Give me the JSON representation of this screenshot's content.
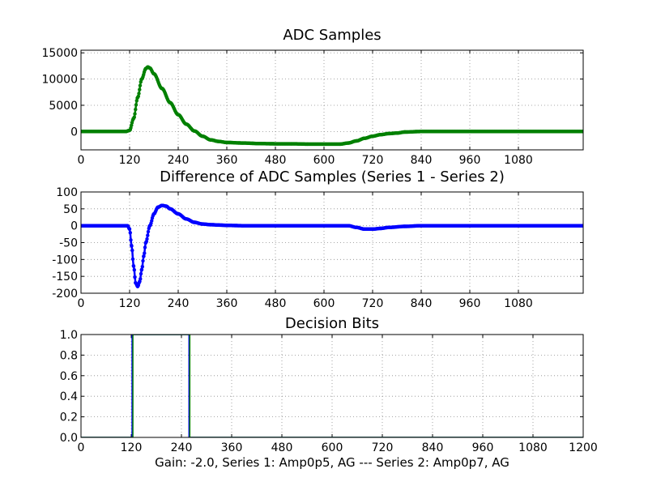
{
  "figure": {
    "caption": "Gain: -2.0, Series 1: Amp0p5, AG --- Series 2: Amp0p7, AG"
  },
  "chart_data": [
    {
      "type": "scatter",
      "title": "ADC Samples",
      "xlabel": "",
      "ylabel": "",
      "xlim": [
        0,
        1240
      ],
      "ylim": [
        -3500,
        15500
      ],
      "xticks": [
        0,
        120,
        240,
        360,
        480,
        600,
        720,
        840,
        960,
        1080
      ],
      "yticks": [
        0,
        5000,
        10000,
        15000
      ],
      "grid": true,
      "legend": "none",
      "series": [
        {
          "color": "#008000",
          "marker": "dot",
          "x": [
            0,
            110,
            120,
            130,
            140,
            150,
            160,
            165,
            170,
            180,
            200,
            220,
            240,
            260,
            280,
            300,
            320,
            340,
            360,
            400,
            440,
            480,
            520,
            560,
            600,
            640,
            660,
            680,
            700,
            720,
            740,
            760,
            780,
            800,
            840,
            880,
            960,
            1080,
            1240
          ],
          "y": [
            0,
            0,
            200,
            2500,
            6500,
            10000,
            12000,
            12300,
            12100,
            11000,
            8200,
            5500,
            3200,
            1400,
            100,
            -900,
            -1600,
            -1900,
            -2100,
            -2200,
            -2300,
            -2350,
            -2350,
            -2400,
            -2400,
            -2400,
            -2200,
            -1800,
            -1300,
            -900,
            -600,
            -400,
            -300,
            -100,
            0,
            0,
            0,
            0,
            0
          ]
        }
      ]
    },
    {
      "type": "scatter",
      "title": "Difference of ADC Samples (Series 1 - Series 2)",
      "xlabel": "",
      "ylabel": "",
      "xlim": [
        0,
        1240
      ],
      "ylim": [
        -200,
        100
      ],
      "xticks": [
        0,
        120,
        240,
        360,
        480,
        600,
        720,
        840,
        960,
        1080
      ],
      "yticks": [
        -200,
        -150,
        -100,
        -50,
        0,
        50,
        100
      ],
      "grid": true,
      "legend": "none",
      "series": [
        {
          "color": "#0000ff",
          "marker": "dot",
          "x": [
            0,
            100,
            115,
            120,
            125,
            130,
            135,
            140,
            145,
            150,
            155,
            160,
            170,
            180,
            190,
            200,
            210,
            220,
            240,
            260,
            280,
            300,
            320,
            340,
            360,
            400,
            480,
            600,
            660,
            680,
            700,
            720,
            740,
            760,
            800,
            840,
            960,
            1240
          ],
          "y": [
            0,
            0,
            0,
            -10,
            -60,
            -120,
            -170,
            -180,
            -165,
            -130,
            -90,
            -50,
            0,
            35,
            55,
            60,
            58,
            50,
            35,
            20,
            10,
            5,
            3,
            2,
            1,
            0,
            0,
            0,
            0,
            -5,
            -10,
            -10,
            -8,
            -5,
            -2,
            0,
            0,
            0
          ]
        }
      ]
    },
    {
      "type": "line",
      "title": "Decision Bits",
      "xlabel": "",
      "ylabel": "",
      "xlim": [
        0,
        1200
      ],
      "ylim": [
        0,
        1
      ],
      "xticks": [
        0,
        120,
        240,
        360,
        480,
        600,
        720,
        840,
        960,
        1080,
        1200
      ],
      "yticks": [
        0.0,
        0.2,
        0.4,
        0.6,
        0.8,
        1.0
      ],
      "ytick_labels": [
        "0.0",
        "0.2",
        "0.4",
        "0.6",
        "0.8",
        "1.0"
      ],
      "grid": true,
      "legend": "none",
      "series": [
        {
          "color": "#0000ff",
          "x": [
            0,
            122,
            122,
            258,
            258,
            1200
          ],
          "y": [
            0,
            0,
            1,
            1,
            0,
            0
          ]
        },
        {
          "color": "#008000",
          "x": [
            0,
            124,
            124,
            260,
            260,
            1200
          ],
          "y": [
            0,
            0,
            1,
            1,
            0,
            0
          ]
        }
      ]
    }
  ]
}
